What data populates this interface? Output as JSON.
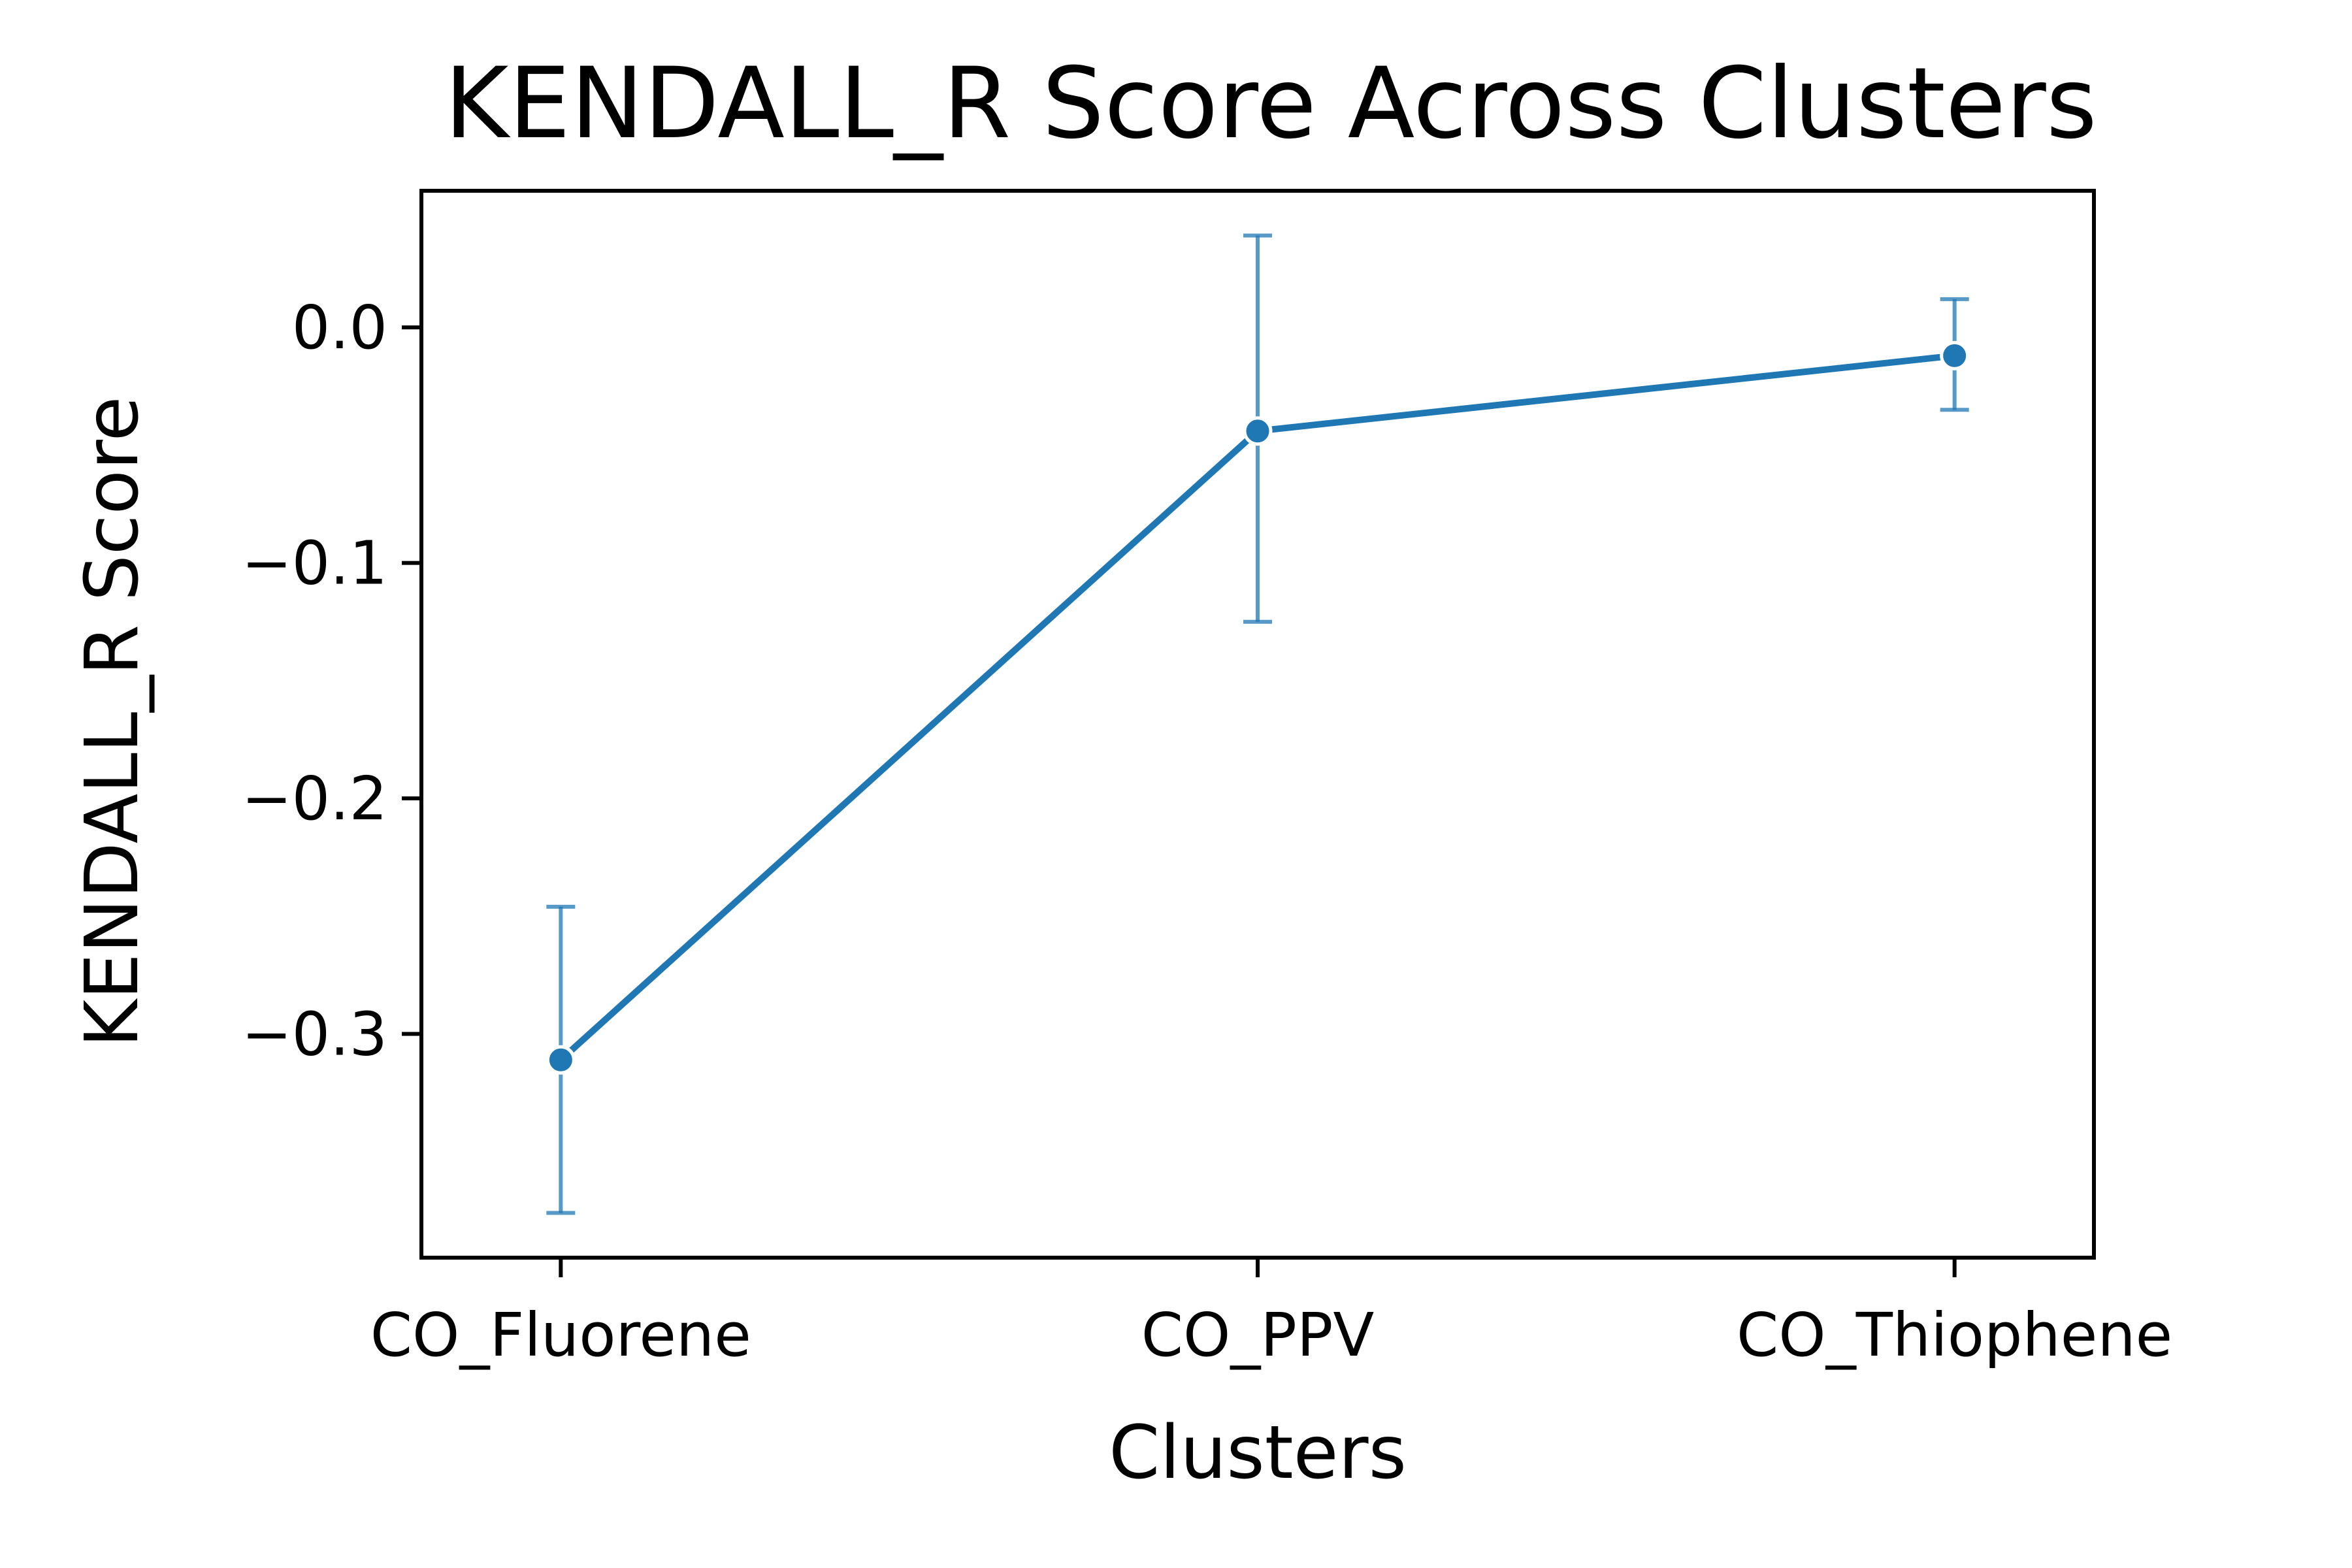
{
  "colors": {
    "series": "#1f77b4",
    "axes": "#000000",
    "background": "#ffffff"
  },
  "chart_data": {
    "type": "line",
    "title": "KENDALL_R Score Across Clusters",
    "xlabel": "Clusters",
    "ylabel": "KENDALL_R Score",
    "categories": [
      "CO_Fluorene",
      "CO_PPV",
      "CO_Thiophene"
    ],
    "series": [
      {
        "values": [
          -0.311,
          -0.044,
          -0.012
        ],
        "error_low": [
          -0.376,
          -0.125,
          -0.035
        ],
        "error_high": [
          -0.246,
          0.039,
          0.012
        ]
      }
    ],
    "ylim": [
      -0.395,
      0.058
    ],
    "yticks": [
      0.0,
      -0.1,
      -0.2,
      -0.3
    ],
    "ytick_labels": [
      "0.0",
      "−0.1",
      "−0.2",
      "−0.3"
    ],
    "grid": false,
    "legend": "none"
  }
}
